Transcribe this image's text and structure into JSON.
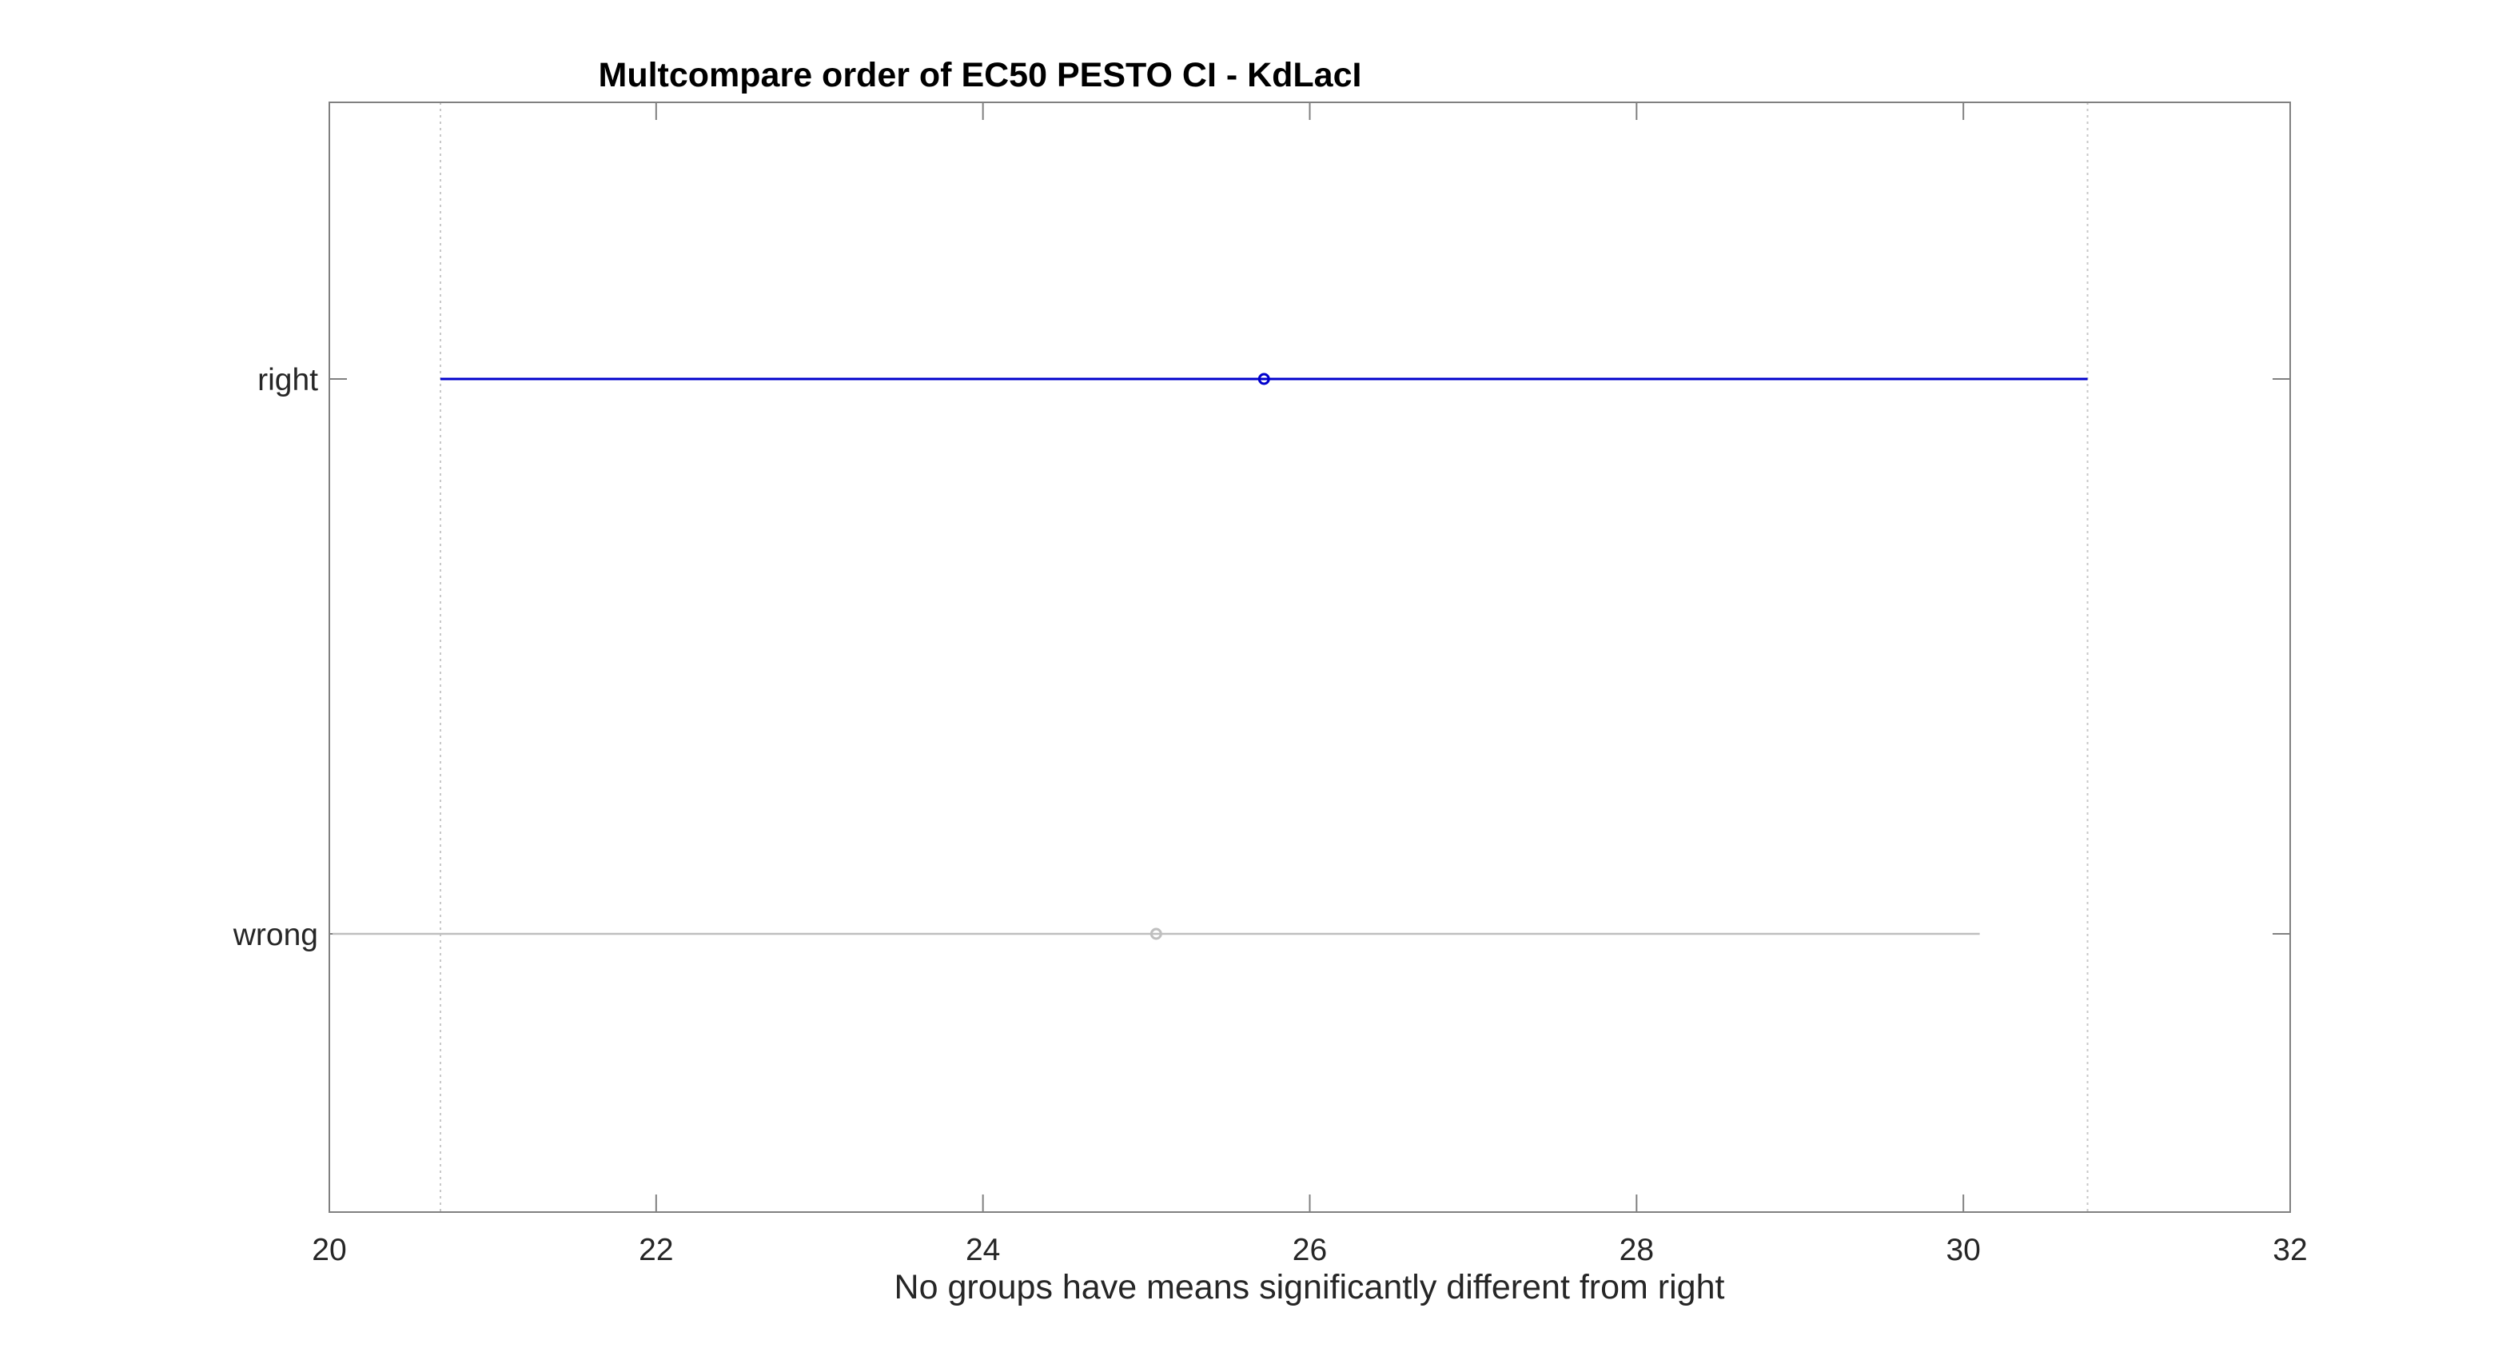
{
  "chart_data": {
    "type": "scatter",
    "title": "Multcompare order of EC50 PESTO CI - KdLacI",
    "xlabel": "No groups have means significantly different from right",
    "ylabel": "",
    "xlim": [
      20,
      32
    ],
    "xticks": [
      "20",
      "22",
      "24",
      "26",
      "28",
      "30",
      "32"
    ],
    "categories": [
      "right",
      "wrong"
    ],
    "grid": false,
    "series": [
      {
        "category": "right",
        "mean": 25.72,
        "lower": 20.68,
        "upper": 30.76,
        "color": "#0000cc",
        "selected": true
      },
      {
        "category": "wrong",
        "mean": 25.06,
        "lower": 20.02,
        "upper": 30.1,
        "color": "#bfbfbf",
        "selected": false
      }
    ],
    "reference_lines": [
      20.68,
      30.76
    ],
    "reference_line_color": "#c8c8c8",
    "axis_color": "#808080"
  }
}
